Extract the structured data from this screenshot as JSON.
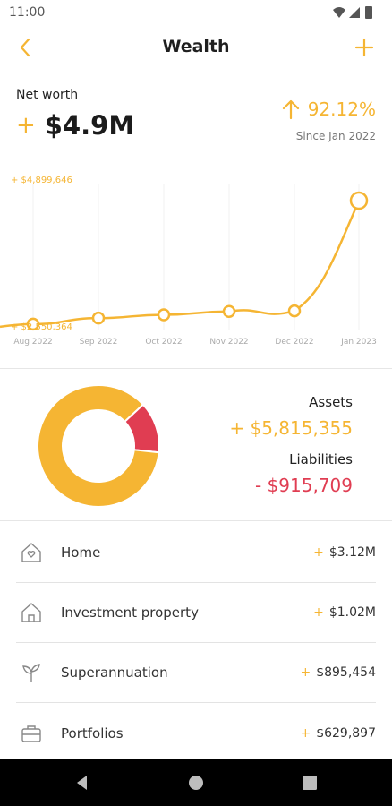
{
  "status": {
    "time": "11:00"
  },
  "header": {
    "title": "Wealth",
    "back_icon": "chevron-left-icon",
    "add_icon": "plus-icon"
  },
  "colors": {
    "accent": "#f5b533",
    "liability": "#e03d52"
  },
  "networth": {
    "label": "Net worth",
    "sign": "+",
    "value": "$4.9M",
    "change_pct": "92.12%",
    "since": "Since Jan 2022"
  },
  "chart_data": {
    "type": "line",
    "x": [
      "Aug 2022",
      "Sep 2022",
      "Oct 2022",
      "Nov 2022",
      "Dec 2022",
      "Jan 2023"
    ],
    "values": [
      2650000,
      2760000,
      2820000,
      2880000,
      2890000,
      4899646
    ],
    "ymax_label": "+ $4,899,646",
    "ymin_label": "+ $2,550,364",
    "ylim": [
      2550364,
      4899646
    ],
    "grid": "vertical"
  },
  "breakdown": {
    "assets_label": "Assets",
    "assets_value": "+ $5,815,355",
    "liabilities_label": "Liabilities",
    "liabilities_value": "-  $915,709",
    "assets_amount": 5815355,
    "liabilities_amount": 915709
  },
  "items": [
    {
      "icon": "home-heart-icon",
      "label": "Home",
      "sign": "+",
      "amount": "$3.12M"
    },
    {
      "icon": "house-icon",
      "label": "Investment property",
      "sign": "+",
      "amount": "$1.02M"
    },
    {
      "icon": "sprout-icon",
      "label": "Superannuation",
      "sign": "+",
      "amount": "$895,454"
    },
    {
      "icon": "briefcase-icon",
      "label": "Portfolios",
      "sign": "+",
      "amount": "$629,897"
    }
  ],
  "nav": {
    "back_icon": "nav-back-icon",
    "home_icon": "nav-home-icon",
    "recents_icon": "nav-recents-icon"
  }
}
